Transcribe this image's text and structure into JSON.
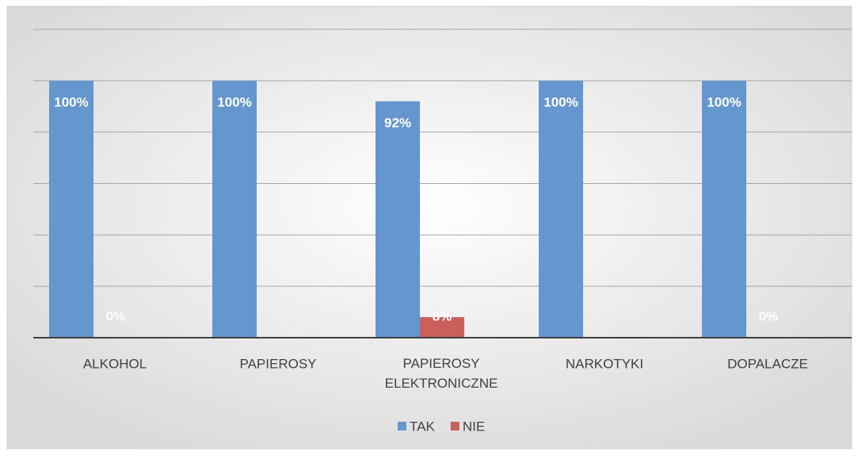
{
  "chart_data": {
    "type": "bar",
    "categories": [
      "ALKOHOL",
      "PAPIEROSY",
      "PAPIEROSY ELEKTRONICZNE",
      "NARKOTYKI",
      "DOPALACZE"
    ],
    "series": [
      {
        "name": "TAK",
        "color": "#6596cd",
        "values": [
          100,
          100,
          92,
          100,
          100
        ],
        "value_labels": [
          "100%",
          "100%",
          "92%",
          "100%",
          "100%"
        ]
      },
      {
        "name": "NIE",
        "color": "#c9605c",
        "values": [
          0,
          0,
          8,
          0,
          0
        ],
        "value_labels": [
          "0%",
          null,
          "8%",
          null,
          "0%"
        ]
      }
    ],
    "ylim": [
      0,
      120
    ],
    "yticks": [
      0,
      20,
      40,
      60,
      80,
      100,
      120
    ],
    "grid": true,
    "legend": "bottom"
  }
}
